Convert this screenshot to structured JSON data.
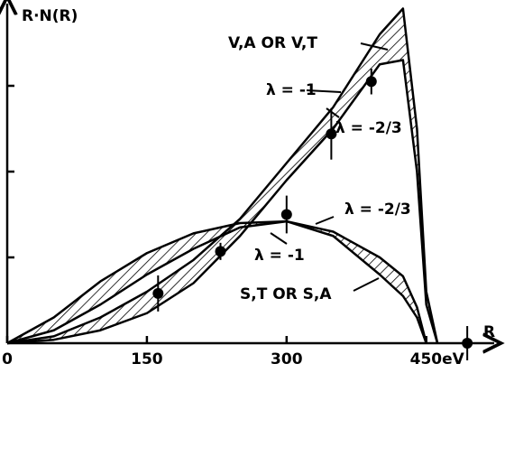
{
  "chart_data": {
    "type": "line",
    "y_label": "R·N(R)",
    "x_label": "R",
    "xlim": [
      0,
      520
    ],
    "ylim": [
      0,
      4
    ],
    "xticks": [
      0,
      150,
      300,
      {
        "value": 450,
        "label": "450eV"
      }
    ],
    "yticks": [
      1,
      2,
      3
    ],
    "x": [
      0,
      50,
      100,
      150,
      200,
      250,
      300,
      350,
      400,
      425,
      440,
      450,
      462
    ],
    "series": [
      {
        "color": "#000000",
        "values": [
          0,
          0.08,
          0.3,
          0.6,
          0.97,
          1.45,
          2.1,
          2.75,
          3.6,
          3.9,
          2.5,
          0.6,
          0
        ]
      },
      {
        "color": "#000000",
        "values": [
          0,
          0.04,
          0.15,
          0.35,
          0.7,
          1.25,
          1.9,
          2.5,
          3.25,
          3.3,
          2.0,
          0.45,
          0
        ]
      },
      {
        "color": "#000000",
        "values": [
          0,
          0.3,
          0.72,
          1.05,
          1.28,
          1.4,
          1.42,
          1.3,
          1.0,
          0.78,
          0.42,
          0,
          null
        ]
      },
      {
        "color": "#000000",
        "values": [
          0,
          0.15,
          0.45,
          0.8,
          1.1,
          1.35,
          1.42,
          1.25,
          0.8,
          0.55,
          0.3,
          0,
          null
        ]
      }
    ],
    "points": {
      "color": "#000000",
      "x": [
        162,
        229,
        300,
        348,
        391,
        494
      ],
      "values": [
        0.58,
        1.07,
        1.5,
        2.44,
        3.05,
        0
      ],
      "errors": [
        0.21,
        0.1,
        0.22,
        0.3,
        0.15,
        0.2
      ]
    },
    "annotations": [
      "V,A OR V,T",
      "λ = -1",
      "λ = -2/3",
      "λ = -2/3",
      "λ = -1",
      "S,T OR S,A"
    ]
  }
}
